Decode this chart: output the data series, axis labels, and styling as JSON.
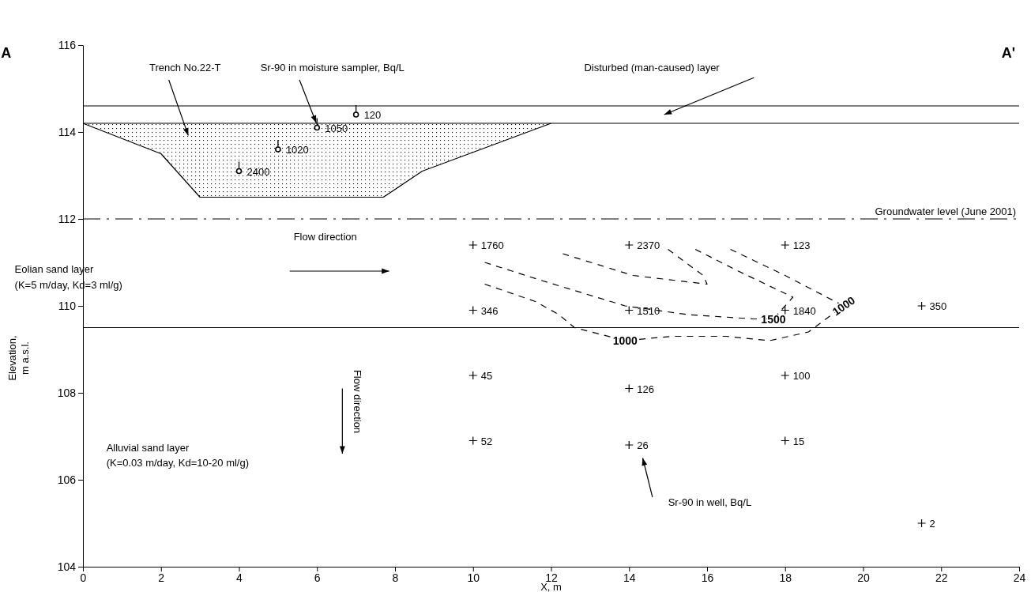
{
  "chart_data": {
    "type": "scatter",
    "xlabel": "X, m",
    "ylabel": "Elevation, m a.s.l.",
    "xlim": [
      0,
      24
    ],
    "xticks": [
      0,
      2,
      4,
      6,
      8,
      10,
      12,
      14,
      16,
      18,
      20,
      22,
      24
    ],
    "ylim": [
      104,
      116
    ],
    "yticks": [
      104,
      106,
      108,
      110,
      112,
      114,
      116
    ],
    "grid": false,
    "series": [
      {
        "type": "line",
        "color": "#000000",
        "line_style": "solid",
        "x": [
          0,
          2,
          3,
          7.7,
          8.7,
          12
        ],
        "values": [
          114.2,
          113.5,
          112.5,
          112.5,
          113.1,
          114.2
        ]
      },
      {
        "type": "line",
        "color": "#000000",
        "line_style": "dashed",
        "x": [
          10.3,
          11.6,
          12.2,
          12.6,
          13.9,
          15.1,
          16.5,
          17.6,
          18.6,
          19.5,
          18,
          16.6
        ],
        "values": [
          110.5,
          110.1,
          109.8,
          109.5,
          109.2,
          109.3,
          109.3,
          109.2,
          109.4,
          110,
          110.7,
          111.3
        ]
      },
      {
        "type": "line",
        "color": "#000000",
        "line_style": "dashed",
        "x": [
          10.3,
          11.7,
          13.9,
          15.5,
          17.2,
          17.7,
          18.2,
          16.8,
          15.7
        ],
        "values": [
          111,
          110.6,
          110,
          109.8,
          109.7,
          109.7,
          110.2,
          110.8,
          111.3
        ]
      },
      {
        "type": "line",
        "color": "#000000",
        "line_style": "dashed",
        "x": [
          12.3,
          14.1,
          16,
          15.9,
          15
        ],
        "values": [
          111.2,
          110.7,
          110.5,
          110.7,
          111.3
        ]
      },
      {
        "type": "scatter",
        "color": "#000000",
        "marker": "circle",
        "x": [
          4,
          5,
          6,
          7
        ],
        "values": [
          113.1,
          113.6,
          114.1,
          114.4
        ]
      },
      {
        "color": "#000000",
        "marker": "cross",
        "x": [
          10,
          14,
          18,
          10,
          14,
          18,
          21.5,
          10,
          14,
          18,
          10,
          14,
          18,
          21.5
        ],
        "values": [
          111.4,
          111.4,
          111.4,
          109.9,
          109.9,
          109.9,
          110,
          108.4,
          108.1,
          108.4,
          106.9,
          106.8,
          106.9,
          105
        ]
      }
    ],
    "ref_lines": [
      {
        "axis": "y",
        "value": 114.6,
        "color": "#000000",
        "line_style": "solid"
      },
      {
        "axis": "y",
        "value": 114.2,
        "color": "#000000",
        "line_style": "solid"
      },
      {
        "axis": "y",
        "value": 112,
        "color": "#000000",
        "line_style": "dashed",
        "label": "Groundwater level (June 2001)"
      },
      {
        "axis": "y",
        "value": 109.5,
        "color": "#000000",
        "line_style": "solid"
      }
    ],
    "annotations": [
      "A",
      "A'",
      "Trench No.22-T",
      {
        "text": "Sr-90 in moisture sampler, Bq/L",
        "x": 6,
        "y": 114.1
      },
      "Disturbed (man-caused) layer",
      "Flow  direction",
      "Eolian sand layer",
      "(K=5 m/day, Kd=3 ml/g)",
      "Alluvial sand layer",
      "(K=0.03 m/day, Kd=10-20 ml/g)",
      "Flow direction",
      "Sr-90 in well, Bq/L",
      {
        "text": "1000",
        "x": 13.9,
        "y": 109.2
      },
      {
        "text": "1500",
        "x": 17.7,
        "y": 109.7
      },
      {
        "text": "1000",
        "x": 19.5,
        "y": 110
      },
      {
        "text": "2400",
        "x": 4,
        "y": 113.1
      },
      {
        "text": "1020",
        "x": 5,
        "y": 113.6
      },
      {
        "text": "1050",
        "x": 6,
        "y": 114.1
      },
      {
        "text": "120",
        "x": 7,
        "y": 114.4
      },
      {
        "text": "1760",
        "x": 10,
        "y": 111.4
      },
      {
        "text": "2370",
        "x": 14,
        "y": 111.4
      },
      {
        "text": "123",
        "x": 18,
        "y": 111.4
      },
      {
        "text": "346",
        "x": 10,
        "y": 109.9
      },
      {
        "text": "1510",
        "x": 14,
        "y": 109.9
      },
      {
        "text": "1840",
        "x": 18,
        "y": 109.9
      },
      {
        "text": "350",
        "x": 21.5,
        "y": 110
      },
      {
        "text": "45",
        "x": 10,
        "y": 108.4
      },
      {
        "text": "126",
        "x": 14,
        "y": 108.1
      },
      {
        "text": "100",
        "x": 18,
        "y": 108.4
      },
      {
        "text": "52",
        "x": 10,
        "y": 106.9
      },
      {
        "text": "26",
        "x": 14,
        "y": 106.8
      },
      {
        "text": "15",
        "x": 18,
        "y": 106.9
      },
      {
        "text": "2",
        "x": 21.5,
        "y": 105
      }
    ]
  }
}
